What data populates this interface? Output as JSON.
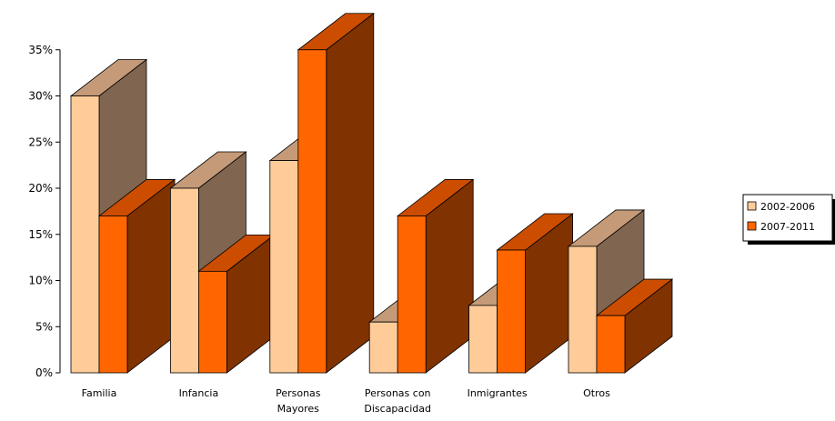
{
  "chart_data": {
    "type": "bar",
    "style": "3d-clustered-column",
    "categories": [
      [
        "Familia"
      ],
      [
        "Infancia"
      ],
      [
        "Personas",
        "Mayores"
      ],
      [
        "Personas con",
        "Discapacidad"
      ],
      [
        "Inmigrantes"
      ],
      [
        "Otros"
      ]
    ],
    "series": [
      {
        "name": "2002-2006",
        "values": [
          30,
          20,
          23,
          5.5,
          7.3,
          13.7
        ]
      },
      {
        "name": "2007-2011",
        "values": [
          17,
          11,
          35,
          17,
          13.3,
          6.2
        ]
      }
    ],
    "ylim": [
      0,
      35
    ],
    "yticks": [
      0,
      5,
      10,
      15,
      20,
      25,
      30,
      35
    ],
    "ytick_format": "%",
    "legend_position": "right",
    "grid": false,
    "colors": {
      "2002-2006": {
        "front": "#FFCC99",
        "top": "#C49A78",
        "side": "#806550"
      },
      "2007-2011": {
        "front": "#FF6600",
        "top": "#CC4D00",
        "side": "#803300"
      }
    }
  }
}
